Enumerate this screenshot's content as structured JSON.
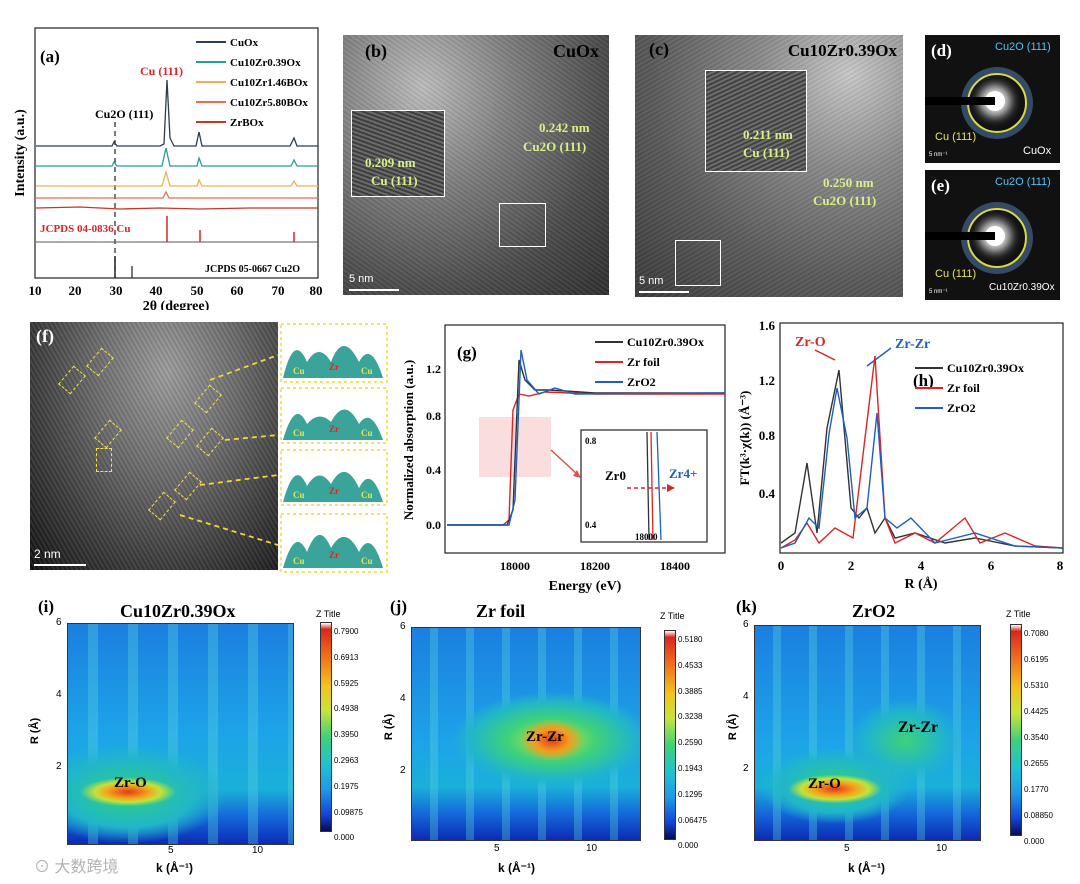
{
  "panels": {
    "a": {
      "label": "(a)",
      "legend": [
        "CuOx",
        "Cu10Zr0.39Ox",
        "Cu10Zr1.46BOx",
        "Cu10Zr5.80BOx",
        "ZrBOx"
      ],
      "legend_colors": [
        "#2b3d4f",
        "#2a9d8f",
        "#e9b25a",
        "#e76f51",
        "#c0392b"
      ],
      "annot_cu111": "Cu (111)",
      "annot_cu2o": "Cu2O (111)",
      "ref1": "JCPDS 04-0836 Cu",
      "ref2": "JCPDS 05-0667 Cu2O",
      "ylabel": "Intensity (a.u.)",
      "xlabel": "2θ (degree)",
      "xticks": [
        "10",
        "20",
        "30",
        "40",
        "50",
        "60",
        "70",
        "80"
      ]
    },
    "b": {
      "label": "(b)",
      "title": "CuOx",
      "d1": "0.209 nm",
      "p1": "Cu (111)",
      "d2": "0.242 nm",
      "p2": "Cu2O (111)",
      "scale": "5 nm"
    },
    "c": {
      "label": "(c)",
      "title": "Cu10Zr0.39Ox",
      "d1": "0.211 nm",
      "p1": "Cu (111)",
      "d2": "0.250 nm",
      "p2": "Cu2O (111)",
      "scale": "5 nm"
    },
    "d": {
      "label": "(d)",
      "ring1": "Cu2O (111)",
      "ring2": "Cu (111)",
      "name": "CuOx",
      "scale": "5 nm⁻¹"
    },
    "e": {
      "label": "(e)",
      "ring1": "Cu2O (111)",
      "ring2": "Cu (111)",
      "name": "Cu10Zr0.39Ox",
      "scale": "5 nm⁻¹"
    },
    "f": {
      "label": "(f)",
      "scale": "2 nm",
      "profile_labels": [
        "Cu",
        "Zr",
        "Cu"
      ]
    },
    "g": {
      "label": "(g)",
      "legend": [
        "Cu10Zr0.39Ox",
        "Zr foil",
        "ZrO2"
      ],
      "colors": [
        "#333333",
        "#d62728",
        "#1f5fbf"
      ],
      "ylabel": "Normalized absorption (a.u.)",
      "xlabel": "Energy (eV)",
      "xticks": [
        "18000",
        "18200",
        "18400"
      ],
      "yticks": [
        "0.0",
        "0.4",
        "0.8",
        "1.2"
      ],
      "inset_zr0": "Zr0",
      "inset_zr4": "Zr4+",
      "inset_yticks": [
        "0.8",
        "0.4"
      ],
      "inset_xtick": "18000"
    },
    "h": {
      "label": "(h)",
      "legend": [
        "Cu10Zr0.39Ox",
        "Zr foil",
        "ZrO2"
      ],
      "colors": [
        "#333333",
        "#d62728",
        "#1f5fbf"
      ],
      "annot_zro": "Zr-O",
      "annot_zrzr": "Zr-Zr",
      "ylabel": "FT(k³·χ(k)) (Å⁻³)",
      "xlabel": "R (Å)",
      "xticks": [
        "0",
        "2",
        "4",
        "6",
        "8"
      ],
      "yticks": [
        "0.4",
        "0.8",
        "1.2",
        "1.6"
      ]
    },
    "i": {
      "label": "(i)",
      "title": "Cu10Zr0.39Ox",
      "peak": "Zr-O",
      "ztitle": "Z Title",
      "zticks": [
        "0.7900",
        "0.6913",
        "0.5925",
        "0.4938",
        "0.3950",
        "0.2963",
        "0.1975",
        "0.09875",
        "0.000"
      ],
      "ylabel": "R (Å)",
      "xlabel": "k (Å⁻¹)",
      "yticks": [
        "6",
        "4",
        "2"
      ],
      "xticks": [
        "5",
        "10"
      ]
    },
    "j": {
      "label": "(j)",
      "title": "Zr foil",
      "peak": "Zr-Zr",
      "ztitle": "Z Title",
      "zticks": [
        "0.5180",
        "0.4533",
        "0.3885",
        "0.3238",
        "0.2590",
        "0.1943",
        "0.1295",
        "0.06475",
        "0.000"
      ],
      "ylabel": "R (Å)",
      "xlabel": "k (Å⁻¹)",
      "yticks": [
        "6",
        "4",
        "2"
      ],
      "xticks": [
        "5",
        "10"
      ]
    },
    "k": {
      "label": "(k)",
      "title": "ZrO2",
      "peak": "Zr-O",
      "peak2": "Zr-Zr",
      "ztitle": "Z Title",
      "zticks": [
        "0.7080",
        "0.6195",
        "0.5310",
        "0.4425",
        "0.3540",
        "0.2655",
        "0.1770",
        "0.08850",
        "0.000"
      ],
      "ylabel": "R (Å)",
      "xlabel": "k (Å⁻¹)",
      "yticks": [
        "6",
        "4",
        "2"
      ],
      "xticks": [
        "5",
        "10"
      ]
    }
  },
  "watermark": "大数跨境"
}
